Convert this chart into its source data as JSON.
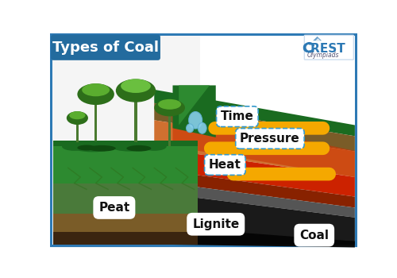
{
  "title": "Types of Coal",
  "title_bg": "#236b9e",
  "title_color": "#ffffff",
  "title_fontsize": 13,
  "bg_color": "#ffffff",
  "border_color": "#2e7ab5",
  "labels": {
    "time": "Time",
    "pressure": "Pressure",
    "heat": "Heat",
    "peat": "Peat",
    "lignite": "Lignite",
    "coal": "Coal"
  },
  "arrow_color": "#f5a800",
  "sq_colors": [
    "#e8197c",
    "#5bc8e8",
    "#f5d800",
    "#f5a800"
  ],
  "label_fontsize": 10,
  "label_fontsize_large": 11,
  "crest_text": "CREST",
  "crest_sub": "Olympiads",
  "crest_color": "#2e7ab5",
  "colors": {
    "sky": "#f0f8ff",
    "forest_green_dark": "#1a6b20",
    "forest_green_mid": "#2d8a30",
    "forest_green_light": "#4db340",
    "peat_green": "#3a7a2a",
    "peat_brown": "#7a5c28",
    "peat_soil": "#4a7a3a",
    "lignite_brown": "#b05820",
    "lignite_orange": "#d07030",
    "red_hot": "#cc2200",
    "dark_red": "#882200",
    "coal_dark": "#1a1a1a",
    "coal_black": "#0a0a0a",
    "grey_layer": "#555555",
    "water_blue": "#87ceeb"
  }
}
